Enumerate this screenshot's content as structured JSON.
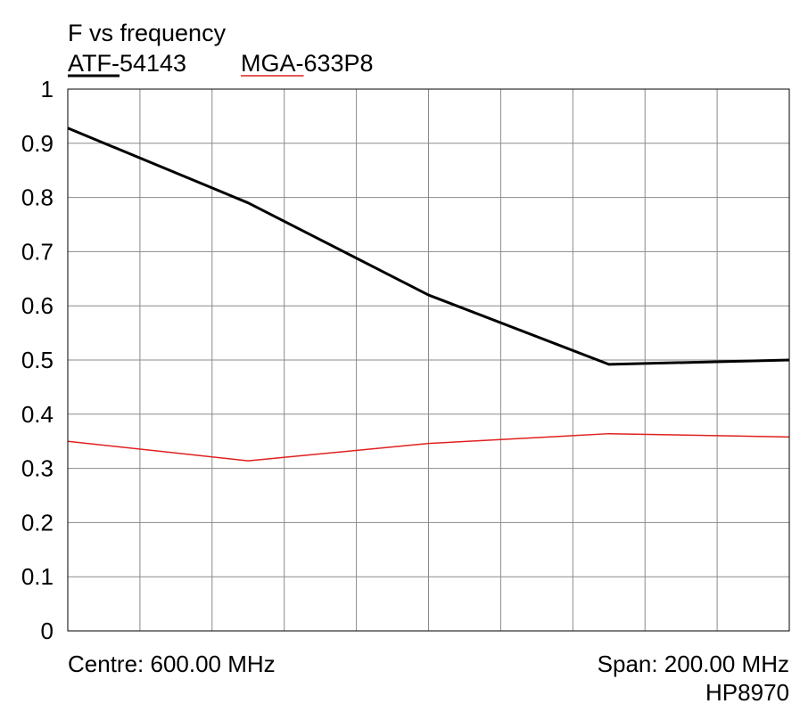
{
  "chart_data": {
    "type": "line",
    "title": "F vs frequency",
    "x_label_left": "Centre: 600.00 MHz",
    "x_label_right": "Span: 200.00 MHz",
    "instrument": "HP8970",
    "xlim": [
      500,
      700
    ],
    "ylim": [
      0,
      1
    ],
    "y_ticks": [
      "0",
      "0.1",
      "0.2",
      "0.3",
      "0.4",
      "0.5",
      "0.6",
      "0.7",
      "0.8",
      "0.9",
      "1"
    ],
    "grid": true,
    "x_gridlines": 10,
    "y_gridlines": 10,
    "legend_position": "top-left",
    "series": [
      {
        "name": "ATF-54143",
        "color": "#000000",
        "x": [
          500,
          550,
          600,
          650,
          700
        ],
        "y": [
          0.928,
          0.79,
          0.62,
          0.492,
          0.5
        ]
      },
      {
        "name": "MGA-633P8",
        "color": "#e02020",
        "x": [
          500,
          550,
          600,
          650,
          700
        ],
        "y": [
          0.35,
          0.314,
          0.346,
          0.364,
          0.358
        ]
      }
    ]
  }
}
